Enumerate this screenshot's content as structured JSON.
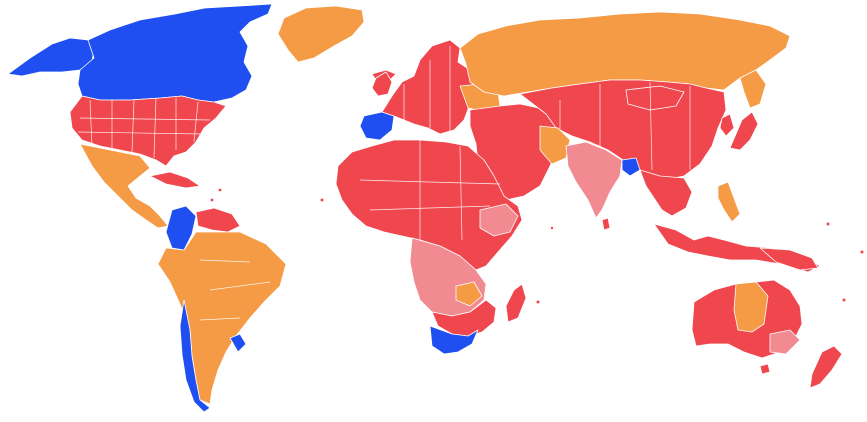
{
  "map": {
    "projection": "world-political-choropleth",
    "background": "#ffffff",
    "palette": {
      "blue": "#1f4ff0",
      "orange": "#f59a45",
      "red": "#f0464e",
      "pink": "#f28a92",
      "border": "#ffffff"
    },
    "regions": [
      {
        "name": "canada",
        "color": "blue"
      },
      {
        "name": "alaska",
        "color": "blue"
      },
      {
        "name": "greenland",
        "color": "orange"
      },
      {
        "name": "usa",
        "color": "red"
      },
      {
        "name": "mexico-central-america",
        "color": "orange"
      },
      {
        "name": "colombia",
        "color": "blue"
      },
      {
        "name": "venezuela",
        "color": "red"
      },
      {
        "name": "brazil-andes",
        "color": "orange"
      },
      {
        "name": "chile",
        "color": "blue"
      },
      {
        "name": "uruguay",
        "color": "blue"
      },
      {
        "name": "iberia",
        "color": "blue"
      },
      {
        "name": "europe",
        "color": "red"
      },
      {
        "name": "russia",
        "color": "orange"
      },
      {
        "name": "north-africa",
        "color": "red"
      },
      {
        "name": "central-africa",
        "color": "pink"
      },
      {
        "name": "south-africa",
        "color": "blue"
      },
      {
        "name": "madagascar",
        "color": "red"
      },
      {
        "name": "middle-east",
        "color": "red"
      },
      {
        "name": "india",
        "color": "pink"
      },
      {
        "name": "bangladesh",
        "color": "blue"
      },
      {
        "name": "china-central-asia",
        "color": "red"
      },
      {
        "name": "mongolia",
        "color": "red"
      },
      {
        "name": "southeast-asia",
        "color": "red"
      },
      {
        "name": "indonesia",
        "color": "red"
      },
      {
        "name": "philippines",
        "color": "orange"
      },
      {
        "name": "japan",
        "color": "red"
      },
      {
        "name": "australia",
        "color": "red"
      },
      {
        "name": "northern-territory",
        "color": "orange"
      },
      {
        "name": "new-zealand",
        "color": "red"
      }
    ]
  }
}
